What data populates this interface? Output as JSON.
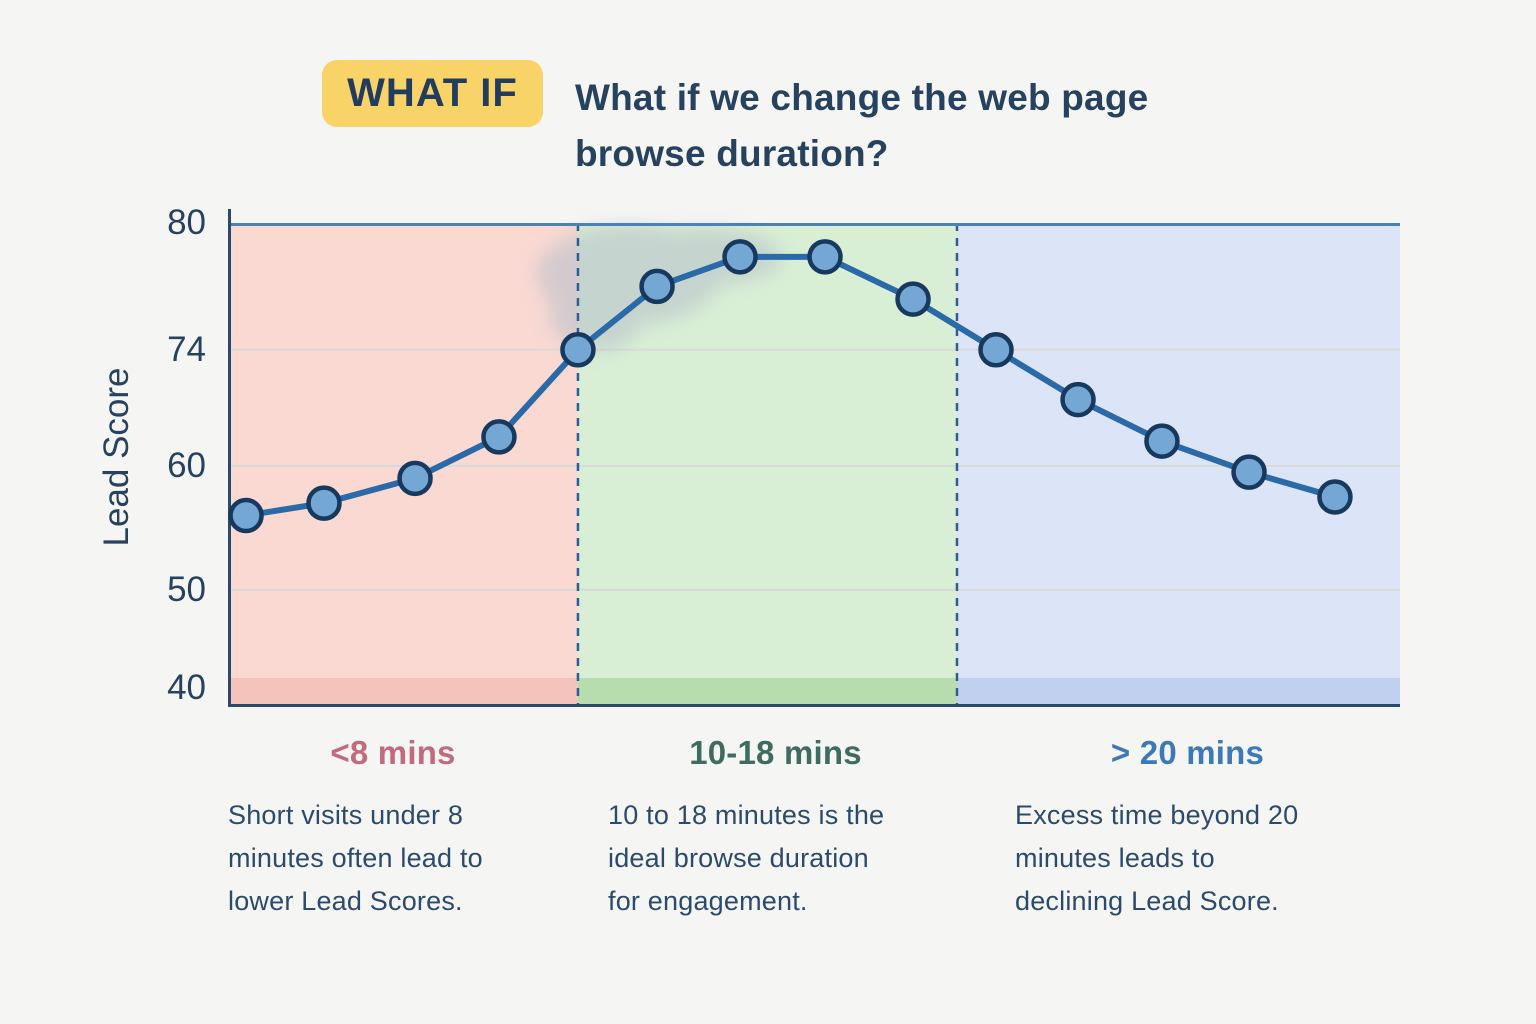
{
  "page": {
    "background": "#f5f6f4"
  },
  "header": {
    "badge_label": "WHAT IF",
    "badge_color": "#f8d368",
    "title": "What if we change the web page\nbrowse duration?"
  },
  "chart_data": {
    "type": "line",
    "title": "",
    "xlabel": "",
    "ylabel": "Lead Score",
    "ylim": [
      40,
      80
    ],
    "grid": true,
    "legend": "none",
    "line_color": "#2a6aa8",
    "marker_fill": "#74a7d3",
    "marker_stroke": "#17395e",
    "boundary_color": "#2d5d94",
    "top_border_color": "#4d80b4",
    "axis_color": "#2b4a6b",
    "gridline_color": "#d7dbd6",
    "band_top_frac": 0.94,
    "y_axis": {
      "ticks": [
        {
          "value": 80,
          "frac": 0.0,
          "gridline": false
        },
        {
          "value": 74,
          "frac": 0.262,
          "gridline": true
        },
        {
          "value": 60,
          "frac": 0.502,
          "gridline": true
        },
        {
          "value": 50,
          "frac": 0.758,
          "gridline": true
        },
        {
          "value": 40,
          "frac": 0.961,
          "gridline": false
        }
      ]
    },
    "zones": [
      {
        "range_label": "<8 mins",
        "fill": "#fad9d3",
        "band_fill": "#f3c3bc",
        "x_end_frac": 0.2986
      },
      {
        "range_label": "10-18 mins",
        "fill": "#d8eed5",
        "band_fill": "#b7ddae",
        "x_end_frac": 0.622
      },
      {
        "range_label": "> 20 mins",
        "fill": "#dce5f7",
        "band_fill": "#c0d0ee",
        "x_end_frac": 1.0
      }
    ],
    "points": [
      {
        "minutes": 2,
        "lead_score": 56,
        "x_frac": 0.0154
      },
      {
        "minutes": 4,
        "lead_score": 57,
        "x_frac": 0.0819
      },
      {
        "minutes": 6,
        "lead_score": 59,
        "x_frac": 0.1596
      },
      {
        "minutes": 8,
        "lead_score": 63.5,
        "x_frac": 0.2312
      },
      {
        "minutes": 10,
        "lead_score": 74,
        "x_frac": 0.2986
      },
      {
        "minutes": 12,
        "lead_score": 77,
        "x_frac": 0.3661
      },
      {
        "minutes": 14,
        "lead_score": 78.4,
        "x_frac": 0.4369
      },
      {
        "minutes": 16,
        "lead_score": 78.4,
        "x_frac": 0.5094
      },
      {
        "minutes": 18,
        "lead_score": 76.4,
        "x_frac": 0.5845
      },
      {
        "minutes": 20,
        "lead_score": 74,
        "x_frac": 0.6553
      },
      {
        "minutes": 22,
        "lead_score": 68,
        "x_frac": 0.7253
      },
      {
        "minutes": 24,
        "lead_score": 63,
        "x_frac": 0.7969
      },
      {
        "minutes": 26,
        "lead_score": 59.5,
        "x_frac": 0.8712
      },
      {
        "minutes": 28,
        "lead_score": 57.5,
        "x_frac": 0.9445
      }
    ],
    "smudge_color": "#b6bfc9"
  },
  "annotations": [
    {
      "heading": "<8 mins",
      "heading_color": "#c26b7d",
      "description": "Short visits under 8\nminutes often lead to\nlower Lead Scores."
    },
    {
      "heading": "10-18 mins",
      "heading_color": "#3f6b61",
      "description": "10 to 18 minutes is the\nideal browse duration\nfor engagement."
    },
    {
      "heading": "> 20 mins",
      "heading_color": "#3d7ab5",
      "description": "Excess time beyond 20\nminutes leads to\ndeclining Lead Score."
    }
  ]
}
